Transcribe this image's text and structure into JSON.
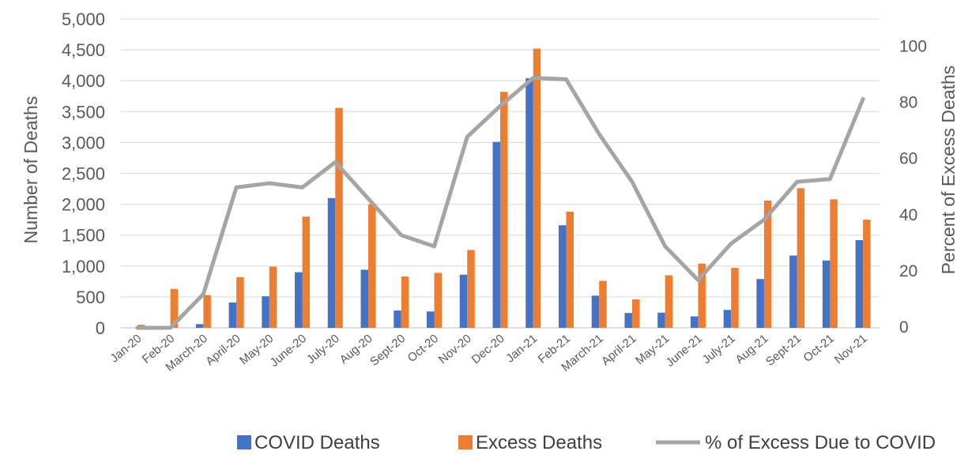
{
  "chart_data": {
    "type": "bar",
    "categories": [
      "Jan-20",
      "Feb-20",
      "March-20",
      "April-20",
      "May-20",
      "June-20",
      "July-20",
      "Aug-20",
      "Sept-20",
      "Oct-20",
      "Nov-20",
      "Dec-20",
      "Jan-21",
      "Feb-21",
      "March-21",
      "April-21",
      "May-21",
      "June-21",
      "July-21",
      "Aug-21",
      "Sept-21",
      "Oct-21",
      "Nov-21"
    ],
    "series": [
      {
        "name": "COVID Deaths",
        "type": "bar",
        "axis": "left",
        "color": "#4472C4",
        "values": [
          0,
          0,
          60,
          410,
          510,
          900,
          2100,
          940,
          280,
          265,
          860,
          3010,
          4040,
          1660,
          520,
          240,
          245,
          185,
          290,
          790,
          1170,
          1090,
          1420
        ]
      },
      {
        "name": "Excess Deaths",
        "type": "bar",
        "axis": "left",
        "color": "#ED7D31",
        "values": [
          50,
          630,
          530,
          820,
          990,
          1800,
          3560,
          2000,
          830,
          890,
          1260,
          3820,
          4520,
          1880,
          760,
          460,
          850,
          1040,
          970,
          2060,
          2260,
          2080,
          1750
        ]
      },
      {
        "name": "% of Excess Due to COVID",
        "type": "line",
        "axis": "right",
        "color": "#A5A5A5",
        "values": [
          0,
          0,
          12,
          50,
          51.5,
          50,
          59,
          46,
          33,
          29,
          68,
          79,
          89,
          88.5,
          69,
          52,
          29,
          17,
          30,
          38.5,
          52,
          53,
          81.5
        ]
      }
    ],
    "xlabel": "",
    "ylabel": "Number of Deaths",
    "y2label": "Percent of Excess Deaths",
    "ylim": [
      0,
      5000
    ],
    "yticks": [
      "0",
      "500",
      "1,000",
      "1,500",
      "2,000",
      "2,500",
      "3,000",
      "3,500",
      "4,000",
      "4,500",
      "5,000"
    ],
    "y2lim": [
      0,
      110
    ],
    "y2ticks": [
      "0",
      "20",
      "40",
      "60",
      "80",
      "100"
    ],
    "grid": true,
    "legend": "bottom"
  }
}
